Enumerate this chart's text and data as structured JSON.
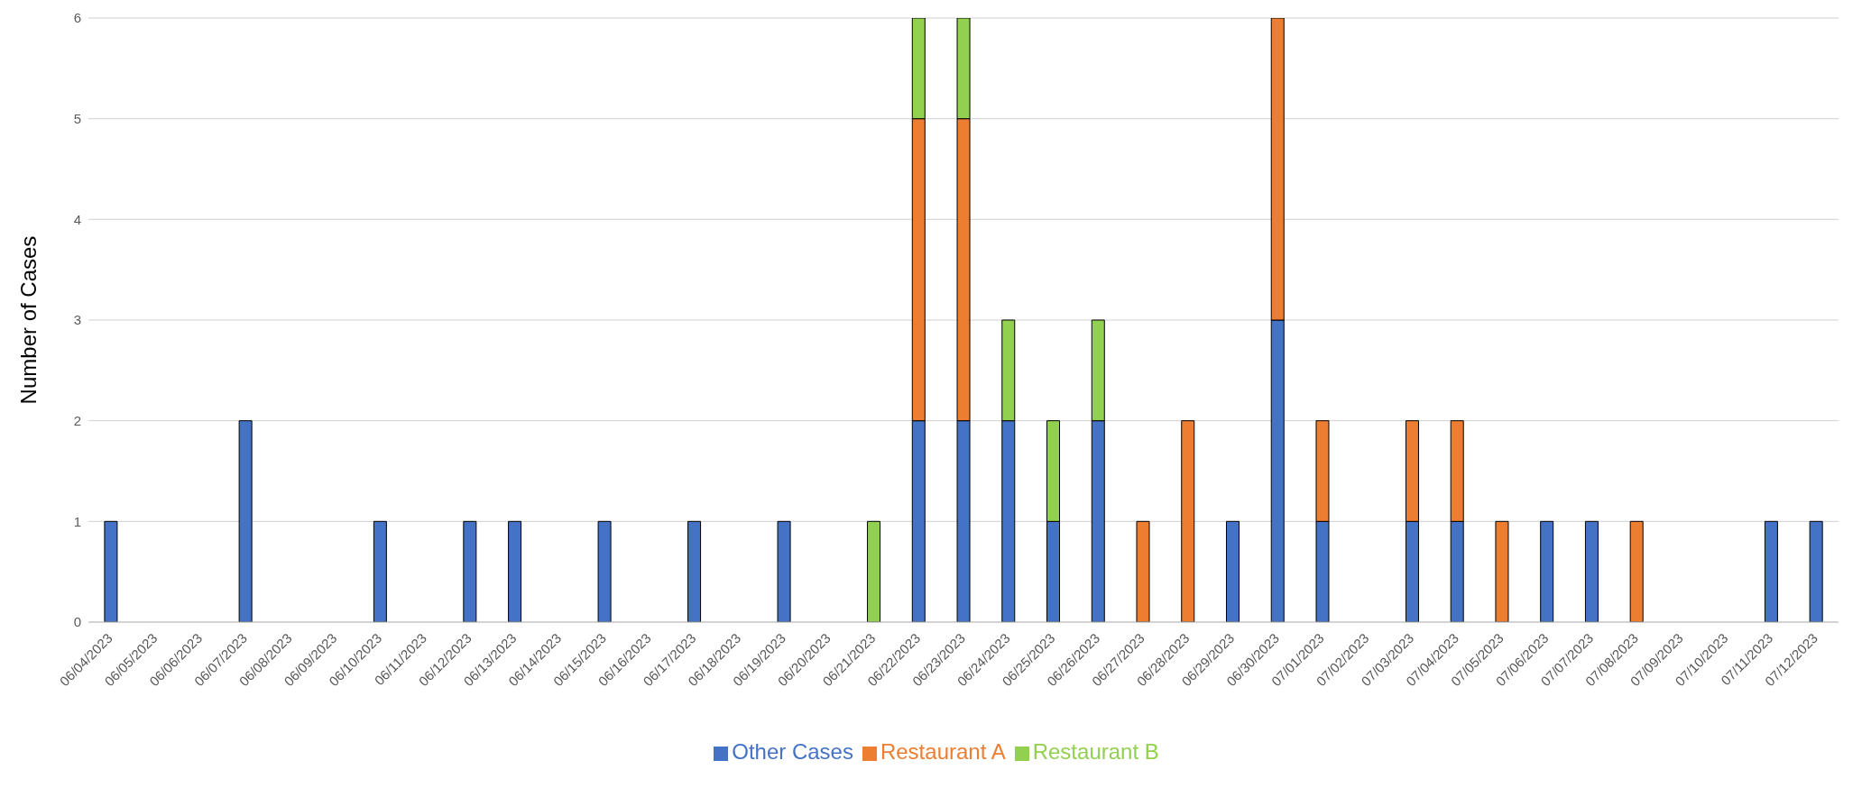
{
  "chart_data": {
    "type": "bar",
    "ylabel": "Number of Cases",
    "stacked": true,
    "grid": "y",
    "legend": "bottom",
    "ylim": [
      0,
      6
    ],
    "yticks": [
      0,
      1,
      2,
      3,
      4,
      5,
      6
    ],
    "categories": [
      "06/04/2023",
      "06/05/2023",
      "06/06/2023",
      "06/07/2023",
      "06/08/2023",
      "06/09/2023",
      "06/10/2023",
      "06/11/2023",
      "06/12/2023",
      "06/13/2023",
      "06/14/2023",
      "06/15/2023",
      "06/16/2023",
      "06/17/2023",
      "06/18/2023",
      "06/19/2023",
      "06/20/2023",
      "06/21/2023",
      "06/22/2023",
      "06/23/2023",
      "06/24/2023",
      "06/25/2023",
      "06/26/2023",
      "06/27/2023",
      "06/28/2023",
      "06/29/2023",
      "06/30/2023",
      "07/01/2023",
      "07/02/2023",
      "07/03/2023",
      "07/04/2023",
      "07/05/2023",
      "07/06/2023",
      "07/07/2023",
      "07/08/2023",
      "07/09/2023",
      "07/10/2023",
      "07/11/2023",
      "07/12/2023"
    ],
    "series": [
      {
        "name": "Other Cases",
        "color": "#4472c4",
        "values": [
          1,
          0,
          0,
          2,
          0,
          0,
          1,
          0,
          1,
          1,
          0,
          1,
          0,
          1,
          0,
          1,
          0,
          0,
          2,
          2,
          2,
          1,
          2,
          0,
          0,
          1,
          3,
          1,
          0,
          1,
          1,
          0,
          1,
          1,
          0,
          0,
          0,
          1,
          1
        ]
      },
      {
        "name": "Restaurant A",
        "color": "#ed7d31",
        "values": [
          0,
          0,
          0,
          0,
          0,
          0,
          0,
          0,
          0,
          0,
          0,
          0,
          0,
          0,
          0,
          0,
          0,
          0,
          3,
          3,
          0,
          0,
          0,
          1,
          2,
          0,
          3,
          1,
          0,
          1,
          1,
          1,
          0,
          0,
          1,
          0,
          0,
          0,
          0
        ]
      },
      {
        "name": "Restaurant B",
        "color": "#92d050",
        "values": [
          0,
          0,
          0,
          0,
          0,
          0,
          0,
          0,
          0,
          0,
          0,
          0,
          0,
          0,
          0,
          0,
          0,
          1,
          1,
          1,
          1,
          1,
          1,
          0,
          0,
          0,
          0,
          0,
          0,
          0,
          0,
          0,
          0,
          0,
          0,
          0,
          0,
          0,
          0
        ]
      }
    ]
  }
}
